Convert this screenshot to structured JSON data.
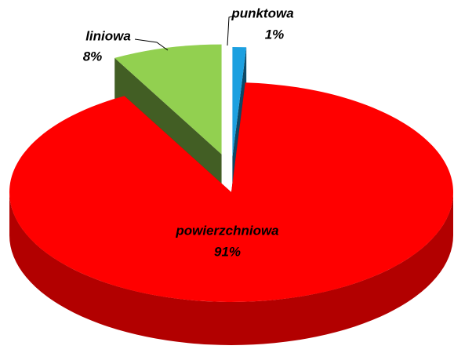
{
  "chart_data": {
    "type": "pie",
    "categories": [
      "punktowa",
      "powierzchniowa",
      "liniowa"
    ],
    "values": [
      1,
      91,
      8
    ],
    "value_labels": [
      "1%",
      "91%",
      "8%"
    ],
    "colors": [
      "#1ca0e0",
      "#ff0000",
      "#92d050"
    ]
  }
}
